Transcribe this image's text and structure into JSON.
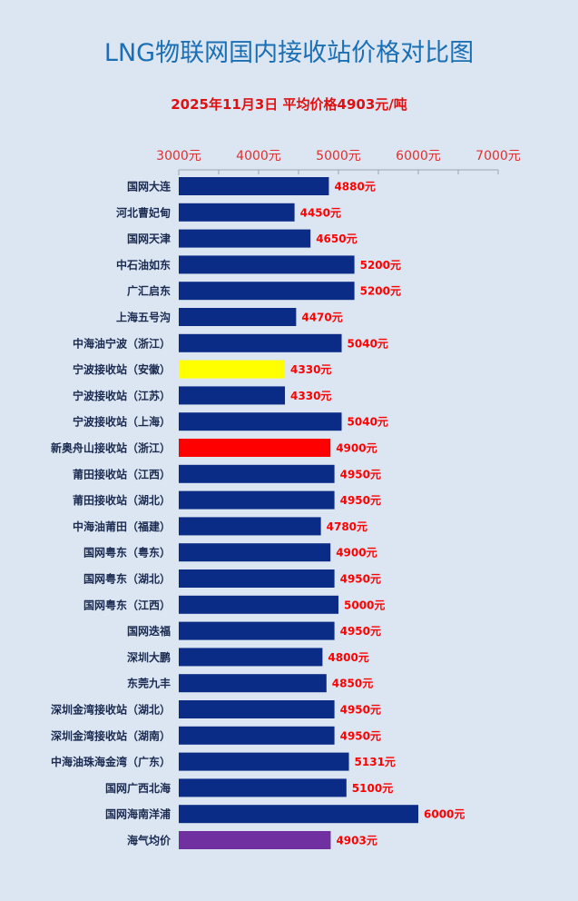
{
  "title": "LNG物联网国内接收站价格对比图",
  "subtitle": "2025年11月3日 平均价格4903元/吨",
  "colors": {
    "default_bar": "#0a2b86",
    "highlight_yellow": "#ffff00",
    "highlight_red": "#ff0000",
    "average_bar": "#7030a0",
    "value_label": "#ff0000",
    "axis_tick_label": "#e03030",
    "category_label": "#1a2a50"
  },
  "chart_data": {
    "type": "bar",
    "orientation": "horizontal",
    "title": "LNG物联网国内接收站价格对比图",
    "subtitle": "2025年11月3日 平均价格4903元/吨",
    "xlim": [
      3000,
      7000
    ],
    "xticks": [
      3000,
      4000,
      5000,
      6000,
      7000
    ],
    "xtick_labels": [
      "3000元",
      "4000元",
      "5000元",
      "6000元",
      "7000元"
    ],
    "axis_position": "top",
    "grid": false,
    "categories": [
      "国网大连",
      "河北曹妃甸",
      "国网天津",
      "中石油如东",
      "广汇启东",
      "上海五号沟",
      "中海油宁波（浙江）",
      "宁波接收站（安徽）",
      "宁波接收站（江苏）",
      "宁波接收站（上海）",
      "新奥舟山接收站（浙江）",
      "莆田接收站（江西）",
      "莆田接收站（湖北）",
      "中海油莆田（福建）",
      "国网粤东（粤东）",
      "国网粤东（湖北）",
      "国网粤东（江西）",
      "国网迭福",
      "深圳大鹏",
      "东莞九丰",
      "深圳金湾接收站（湖北）",
      "深圳金湾接收站（湖南）",
      "中海油珠海金湾（广东）",
      "国网广西北海",
      "国网海南洋浦",
      "海气均价"
    ],
    "values": [
      4880,
      4450,
      4650,
      5200,
      5200,
      4470,
      5040,
      4330,
      4330,
      5040,
      4900,
      4950,
      4950,
      4780,
      4900,
      4950,
      5000,
      4950,
      4800,
      4850,
      4950,
      4950,
      5131,
      5100,
      6000,
      4903
    ],
    "value_labels": [
      "4880元",
      "4450元",
      "4650元",
      "5200元",
      "5200元",
      "4470元",
      "5040元",
      "4330元",
      "4330元",
      "5040元",
      "4900元",
      "4950元",
      "4950元",
      "4780元",
      "4900元",
      "4950元",
      "5000元",
      "4950元",
      "4800元",
      "4850元",
      "4950元",
      "4950元",
      "5131元",
      "5100元",
      "6000元",
      "4903元"
    ],
    "bar_colors": [
      "default",
      "default",
      "default",
      "default",
      "default",
      "default",
      "default",
      "yellow",
      "default",
      "default",
      "red",
      "default",
      "default",
      "default",
      "default",
      "default",
      "default",
      "default",
      "default",
      "default",
      "default",
      "default",
      "default",
      "default",
      "default",
      "purple"
    ]
  }
}
